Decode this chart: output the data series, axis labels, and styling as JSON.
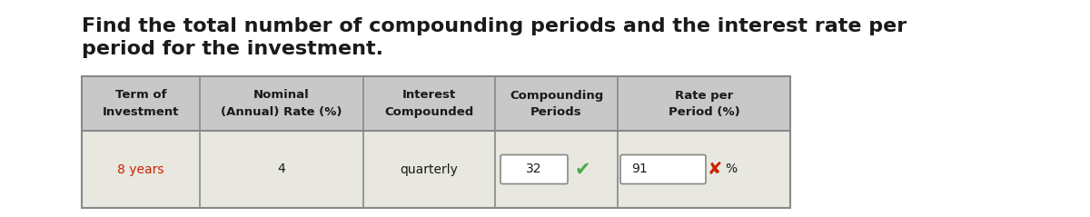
{
  "title_line1": "Find the total number of compounding periods and the interest rate per",
  "title_line2": "period for the investment.",
  "title_fontsize": 16,
  "title_color": "#1a1a1a",
  "background_color": "#ffffff",
  "header_bg": "#c8c8c8",
  "row_bg": "#e8e8e0",
  "table_border_color": "#888888",
  "col_headers": [
    "Term of\nInvestment",
    "Nominal\n(Annual) Rate (%)",
    "Interest\nCompounded",
    "Compounding\nPeriods",
    "Rate per\nPeriod (%)"
  ],
  "row_data": [
    "8 years",
    "4",
    "quarterly",
    "32",
    "91"
  ],
  "term_color": "#cc2200",
  "normal_color": "#1a1a1a",
  "check_color": "#44aa44",
  "cross_color": "#cc2200",
  "percent_label": "%"
}
